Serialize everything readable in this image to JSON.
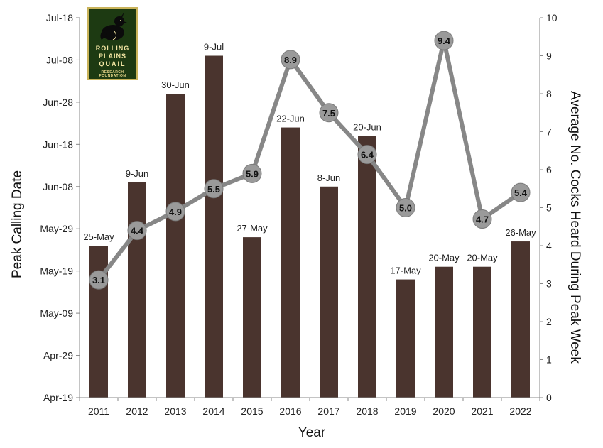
{
  "logo": {
    "line1": "ROLLING",
    "line2": "PLAINS",
    "line3": "QUAIL",
    "line4": "RESEARCH FOUNDATION"
  },
  "chart_data": {
    "type": "bar+line",
    "xlabel": "Year",
    "ylabel_left": "Peak Calling Date",
    "ylabel_right": "Average No. Cocks Heard During Peak Week",
    "categories": [
      "2011",
      "2012",
      "2013",
      "2014",
      "2015",
      "2016",
      "2017",
      "2018",
      "2019",
      "2020",
      "2021",
      "2022"
    ],
    "left_axis": {
      "ticks": [
        "Apr-19",
        "Apr-29",
        "May-09",
        "May-19",
        "May-29",
        "Jun-08",
        "Jun-18",
        "Jun-28",
        "Jul-08",
        "Jul-18"
      ],
      "ylim": [
        "Apr-19",
        "Jul-18"
      ]
    },
    "right_axis": {
      "ticks": [
        0,
        1,
        2,
        3,
        4,
        5,
        6,
        7,
        8,
        9,
        10
      ],
      "ylim": [
        0,
        10
      ]
    },
    "bars": {
      "labels": [
        "25-May",
        "9-Jun",
        "30-Jun",
        "9-Jul",
        "27-May",
        "22-Jun",
        "8-Jun",
        "20-Jun",
        "17-May",
        "20-May",
        "20-May",
        "26-May"
      ],
      "color": "#4a342e"
    },
    "line": {
      "values": [
        3.1,
        4.4,
        4.9,
        5.5,
        5.9,
        8.9,
        7.5,
        6.4,
        5.0,
        9.4,
        4.7,
        5.4
      ],
      "labels": [
        "3.1",
        "4.4",
        "4.9",
        "5.5",
        "5.9",
        "8.9",
        "7.5",
        "6.4",
        "5.0",
        "9.4",
        "4.7",
        "5.4"
      ],
      "color": "#878787"
    },
    "grid": false,
    "legend": "none"
  }
}
